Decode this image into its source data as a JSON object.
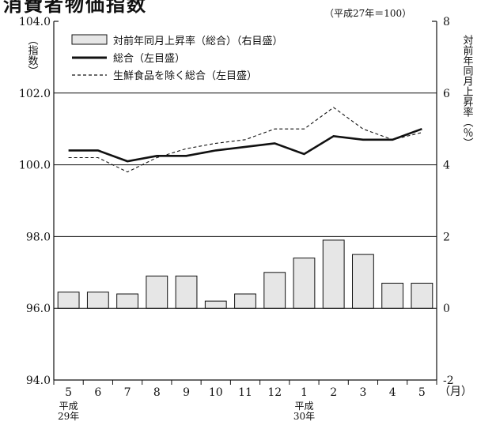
{
  "title": "消費者物価指数",
  "chart_data": {
    "type": "bar+line",
    "base_note": "（平成27年＝100）",
    "left_axis": {
      "label": "（指数）",
      "ticks": [
        "104.0",
        "102.0",
        "100.0",
        "98.0",
        "96.0",
        "94.0"
      ],
      "ylim": [
        94.0,
        104.0
      ]
    },
    "right_axis": {
      "label": "対前年同月上昇率（％）",
      "ticks": [
        "8",
        "6",
        "4",
        "2",
        "0",
        "-2"
      ],
      "ylim": [
        -2,
        8
      ]
    },
    "x_unit": "（月）",
    "categories": [
      "5",
      "6",
      "7",
      "8",
      "9",
      "10",
      "11",
      "12",
      "1",
      "2",
      "3",
      "4",
      "5"
    ],
    "year_labels": [
      {
        "index": 0,
        "lines": [
          "平成",
          "29年"
        ]
      },
      {
        "index": 8,
        "lines": [
          "平成",
          "30年"
        ]
      }
    ],
    "series": [
      {
        "name": "対前年同月上昇率（総合）（右目盛）",
        "type": "bar",
        "axis": "right",
        "values": [
          0.45,
          0.45,
          0.4,
          0.9,
          0.9,
          0.2,
          0.4,
          1.0,
          1.4,
          1.9,
          1.5,
          0.7,
          0.7
        ]
      },
      {
        "name": "総合（左目盛）",
        "type": "line",
        "style": "solid",
        "axis": "left",
        "values": [
          100.4,
          100.4,
          100.1,
          100.25,
          100.25,
          100.4,
          100.5,
          100.6,
          100.3,
          100.8,
          100.7,
          100.7,
          101.0
        ]
      },
      {
        "name": "生鮮食品を除く総合（左目盛）",
        "type": "line",
        "style": "dashed",
        "axis": "left",
        "values": [
          100.2,
          100.2,
          99.8,
          100.2,
          100.45,
          100.6,
          100.7,
          101.0,
          101.0,
          101.6,
          101.0,
          100.7,
          100.9
        ]
      }
    ],
    "colors": {
      "bar_fill": "#e6e6e6",
      "line": "#111111"
    }
  }
}
